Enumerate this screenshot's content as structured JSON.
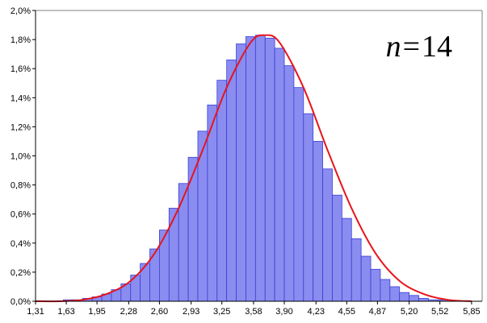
{
  "chart_data": {
    "type": "bar",
    "title": "",
    "xlabel": "",
    "ylabel": "",
    "annotation": {
      "variable": "n",
      "equals": "=",
      "value": "14"
    },
    "xlim": [
      1.31,
      5.96
    ],
    "ylim": [
      0,
      2.0
    ],
    "y_unit": "%",
    "grid": false,
    "legend": "none",
    "x_tick_labels": [
      "1,31",
      "1,63",
      "1,95",
      "2,28",
      "2,60",
      "2,93",
      "3,25",
      "3,58",
      "3,90",
      "4,23",
      "4,55",
      "4,87",
      "5,20",
      "5,52",
      "5,85"
    ],
    "x_tick_values": [
      1.31,
      1.63,
      1.95,
      2.28,
      2.6,
      2.93,
      3.25,
      3.58,
      3.9,
      4.23,
      4.55,
      4.87,
      5.2,
      5.52,
      5.85
    ],
    "y_tick_labels": [
      "0,0%",
      "0,2%",
      "0,4%",
      "0,6%",
      "0,8%",
      "1,0%",
      "1,2%",
      "1,4%",
      "1,6%",
      "1,8%",
      "2,0%"
    ],
    "y_tick_values": [
      0.0,
      0.2,
      0.4,
      0.6,
      0.8,
      1.0,
      1.2,
      1.4,
      1.6,
      1.8,
      2.0
    ],
    "histogram_centers": [
      1.45,
      1.55,
      1.65,
      1.75,
      1.85,
      1.95,
      2.05,
      2.15,
      2.25,
      2.35,
      2.45,
      2.55,
      2.65,
      2.75,
      2.85,
      2.95,
      3.05,
      3.15,
      3.25,
      3.35,
      3.45,
      3.55,
      3.65,
      3.75,
      3.85,
      3.95,
      4.05,
      4.15,
      4.25,
      4.35,
      4.45,
      4.55,
      4.65,
      4.75,
      4.85,
      4.95,
      5.05,
      5.15,
      5.25,
      5.35,
      5.45,
      5.55,
      5.65,
      5.75
    ],
    "histogram_values": [
      0.0,
      0.0,
      0.01,
      0.01,
      0.02,
      0.03,
      0.05,
      0.08,
      0.12,
      0.18,
      0.26,
      0.36,
      0.49,
      0.64,
      0.81,
      0.99,
      1.17,
      1.35,
      1.52,
      1.66,
      1.77,
      1.82,
      1.83,
      1.81,
      1.74,
      1.62,
      1.47,
      1.29,
      1.1,
      0.91,
      0.73,
      0.57,
      0.43,
      0.31,
      0.22,
      0.15,
      0.1,
      0.06,
      0.04,
      0.02,
      0.01,
      0.01,
      0.0,
      0.0
    ],
    "curve_x": [
      1.31,
      1.55,
      1.8,
      2.05,
      2.3,
      2.55,
      2.8,
      3.05,
      3.3,
      3.55,
      3.7,
      3.85,
      4.1,
      4.35,
      4.6,
      4.85,
      5.1,
      5.35,
      5.6,
      5.85
    ],
    "curve_y": [
      0.0,
      0.0,
      0.01,
      0.05,
      0.14,
      0.33,
      0.64,
      1.04,
      1.47,
      1.78,
      1.83,
      1.78,
      1.47,
      1.04,
      0.64,
      0.33,
      0.14,
      0.05,
      0.01,
      0.0
    ],
    "colors": {
      "bars": "#8a8cf0",
      "bar_edge": "#3a3fd6",
      "curve": "#e8141c",
      "axis": "#000000",
      "frame": "#7f7f7f"
    }
  }
}
